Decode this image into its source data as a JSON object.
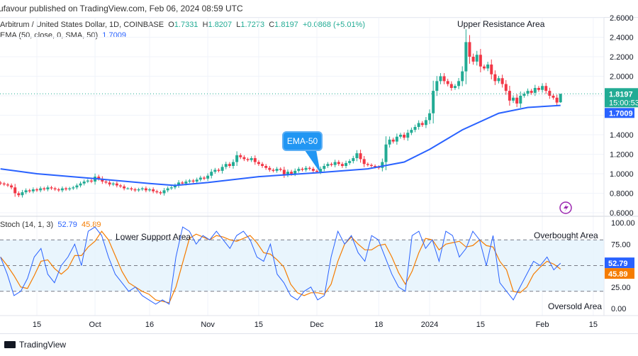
{
  "header": {
    "published": "ufavour published on TradingView.com, Feb 06, 2024 08:59 UTC"
  },
  "legend": {
    "symbol": "Arbitrum / United States Dollar, 1D, COINBASE",
    "o_label": "O",
    "o": "1.7331",
    "h_label": "H",
    "h": "1.8207",
    "l_label": "L",
    "l": "1.7273",
    "c_label": "C",
    "c": "1.8197",
    "change": "+0.0868 (+5.01%)",
    "ema_label": "EMA (50, close, 0, SMA, 50)",
    "ema_value": "1.7009",
    "stoch_label": "Stoch (14, 1, 3)",
    "stoch_k": "52.79",
    "stoch_d": "45.89"
  },
  "price_badges": {
    "last": "1.8197",
    "countdown": "15:00:53",
    "ema": "1.7009",
    "k": "52.79",
    "d": "45.89"
  },
  "annotations": {
    "upper": "Upper Resistance Area",
    "lower": "Lower Support Area",
    "overbought": "Overbought Area",
    "oversold": "Oversold Area",
    "ema_callout": "EMA-50"
  },
  "footer": {
    "brand": "TradingView"
  },
  "colors": {
    "up": "#22ab94",
    "down": "#f23645",
    "ema": "#2962ff",
    "k": "#2962ff",
    "d": "#f57c00",
    "band": "#e3f2fd",
    "accent_icon": "#9c27b0"
  },
  "icons": {
    "alert": "lightning-icon"
  },
  "chart_data": [
    {
      "type": "candlestick",
      "start_date": "2023-09-05",
      "end_date": "2024-02-06",
      "closes": [
        0.9,
        0.89,
        0.88,
        0.86,
        0.8,
        0.78,
        0.81,
        0.83,
        0.82,
        0.84,
        0.83,
        0.85,
        0.84,
        0.86,
        0.85,
        0.84,
        0.83,
        0.85,
        0.84,
        0.85,
        0.86,
        0.88,
        0.9,
        0.92,
        0.93,
        0.92,
        0.97,
        0.95,
        0.92,
        0.91,
        0.89,
        0.9,
        0.88,
        0.87,
        0.85,
        0.85,
        0.84,
        0.83,
        0.84,
        0.85,
        0.83,
        0.84,
        0.82,
        0.81,
        0.8,
        0.83,
        0.85,
        0.86,
        0.88,
        0.91,
        0.9,
        0.92,
        0.93,
        0.92,
        0.94,
        0.96,
        0.95,
        0.98,
        1.02,
        1.04,
        1.03,
        1.07,
        1.1,
        1.08,
        1.12,
        1.19,
        1.17,
        1.15,
        1.14,
        1.16,
        1.12,
        1.1,
        1.08,
        1.06,
        1.04,
        1.03,
        1.05,
        1.04,
        0.99,
        1.02,
        1.0,
        1.03,
        1.05,
        1.04,
        1.06,
        1.05,
        1.03,
        1.02,
        1.05,
        1.08,
        1.1,
        1.09,
        1.12,
        1.1,
        1.08,
        1.11,
        1.13,
        1.16,
        1.21,
        1.15,
        1.1,
        1.09,
        1.08,
        1.07,
        1.06,
        1.12,
        1.3,
        1.35,
        1.33,
        1.38,
        1.4,
        1.37,
        1.42,
        1.45,
        1.48,
        1.52,
        1.5,
        1.55,
        1.62,
        1.85,
        1.95,
        2.0,
        1.95,
        1.92,
        1.88,
        1.9,
        1.95,
        2.05,
        2.35,
        2.2,
        2.15,
        2.22,
        2.1,
        2.08,
        2.12,
        2.02,
        1.95,
        1.98,
        1.92,
        1.85,
        1.75,
        1.78,
        1.72,
        1.8,
        1.82,
        1.85,
        1.83,
        1.88,
        1.86,
        1.9,
        1.85,
        1.8,
        1.78,
        1.73,
        1.82
      ],
      "last": {
        "open": 1.7331,
        "high": 1.8207,
        "low": 1.7273,
        "close": 1.8197
      },
      "ema_50": [
        [
          "2023-09-05",
          1.05
        ],
        [
          "2023-09-15",
          1.0
        ],
        [
          "2023-10-01",
          0.95
        ],
        [
          "2023-10-16",
          0.9
        ],
        [
          "2023-10-23",
          0.88
        ],
        [
          "2023-11-01",
          0.91
        ],
        [
          "2023-11-15",
          0.97
        ],
        [
          "2023-12-01",
          1.01
        ],
        [
          "2023-12-15",
          1.05
        ],
        [
          "2023-12-25",
          1.12
        ],
        [
          "2024-01-01",
          1.25
        ],
        [
          "2024-01-10",
          1.45
        ],
        [
          "2024-01-20",
          1.62
        ],
        [
          "2024-01-28",
          1.68
        ],
        [
          "2024-02-06",
          1.7009
        ]
      ],
      "y_ticks": [
        "2.6000",
        "2.4000",
        "2.2000",
        "2.0000",
        "1.4000",
        "1.2000",
        "1.0000",
        "0.8000",
        "0.6000"
      ],
      "ylim": [
        0.6,
        2.6
      ],
      "scale": "linear",
      "grid": true
    },
    {
      "type": "line",
      "name": "Stoch (14, 1, 3)",
      "k": [
        60,
        40,
        15,
        20,
        35,
        60,
        70,
        40,
        30,
        50,
        60,
        75,
        50,
        90,
        95,
        85,
        60,
        40,
        30,
        20,
        25,
        15,
        10,
        5,
        10,
        5,
        60,
        95,
        90,
        75,
        85,
        80,
        90,
        80,
        70,
        85,
        90,
        80,
        60,
        55,
        75,
        40,
        30,
        15,
        10,
        20,
        25,
        10,
        15,
        60,
        90,
        75,
        85,
        65,
        55,
        85,
        80,
        60,
        40,
        25,
        20,
        85,
        90,
        70,
        80,
        55,
        90,
        85,
        60,
        70,
        90,
        80,
        50,
        85,
        30,
        20,
        10,
        25,
        40,
        55,
        50,
        60,
        45,
        52.79
      ],
      "d_last": 45.89,
      "y_ticks": [
        "100.00",
        "75.00",
        "25.00",
        "0.00"
      ],
      "levels": [
        80,
        50,
        20
      ],
      "ylim": [
        0,
        100
      ]
    }
  ],
  "x_ticks": [
    "15",
    "Oct",
    "16",
    "Nov",
    "15",
    "Dec",
    "18",
    "2024",
    "15",
    "Feb",
    "15"
  ]
}
